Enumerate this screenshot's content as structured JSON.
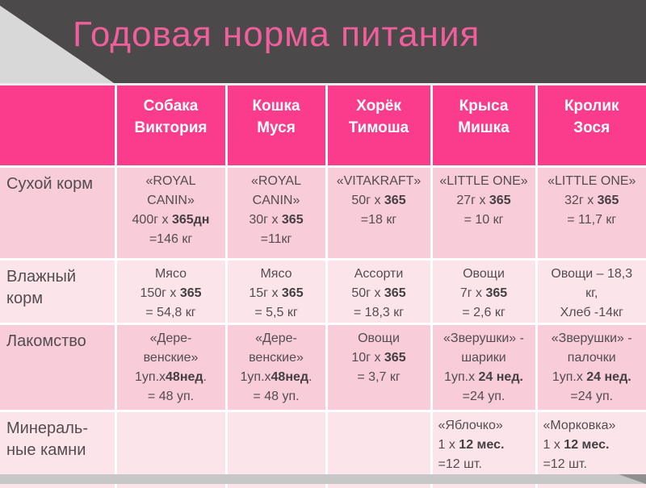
{
  "title": "Годовая норма питания",
  "colors": {
    "title_pink": "#ef5f9c",
    "header_bg": "#fb3c8c",
    "row_odd_bg": "#f8ccd8",
    "row_even_bg": "#fce5ea",
    "band_bg": "#4c494a",
    "corner_gray": "#d8d8d8",
    "bottom_strip": "#c7c7c7",
    "cell_text": "#524d51",
    "header_text": "#ffffff"
  },
  "table": {
    "header": [
      {
        "lines": []
      },
      {
        "lines": [
          "Собака",
          "Виктория"
        ]
      },
      {
        "lines": [
          "Кошка",
          "Муся"
        ]
      },
      {
        "lines": [
          "Хорёк",
          "Тимоша"
        ]
      },
      {
        "lines": [
          "Крыса",
          "Мишка"
        ]
      },
      {
        "lines": [
          "Кролик",
          "Зося"
        ]
      }
    ],
    "rows": [
      {
        "label": [
          "Сухой корм"
        ],
        "cells": [
          [
            [
              {
                "t": "«ROYAL"
              }
            ],
            [
              {
                "t": "CANIN»"
              }
            ],
            [
              {
                "t": "400г х "
              },
              {
                "t": "365дн",
                "b": true
              }
            ],
            [
              {
                "t": "=146 кг"
              }
            ]
          ],
          [
            [
              {
                "t": "«ROYAL"
              }
            ],
            [
              {
                "t": "CANIN»"
              }
            ],
            [
              {
                "t": "30г х "
              },
              {
                "t": "365",
                "b": true
              }
            ],
            [
              {
                "t": "=11кг"
              }
            ]
          ],
          [
            [
              {
                "t": "«VITAKRAFT»"
              }
            ],
            [
              {
                "t": "50г х "
              },
              {
                "t": "365",
                "b": true
              }
            ],
            [
              {
                "t": "=18 кг"
              }
            ]
          ],
          [
            [
              {
                "t": "«LITTLE ONE»"
              }
            ],
            [
              {
                "t": "27г х "
              },
              {
                "t": "365",
                "b": true
              }
            ],
            [
              {
                "t": "= 10 кг"
              }
            ]
          ],
          [
            [
              {
                "t": "«LITTLE ONE»"
              }
            ],
            [
              {
                "t": "32г х "
              },
              {
                "t": "365",
                "b": true
              }
            ],
            [
              {
                "t": "= 11,7 кг"
              }
            ]
          ]
        ]
      },
      {
        "label": [
          "Влажный",
          "корм"
        ],
        "cells": [
          [
            [
              {
                "t": "Мясо"
              }
            ],
            [
              {
                "t": "150г х "
              },
              {
                "t": "365",
                "b": true
              }
            ],
            [
              {
                "t": "= 54,8 кг"
              }
            ]
          ],
          [
            [
              {
                "t": "Мясо"
              }
            ],
            [
              {
                "t": "15г х "
              },
              {
                "t": "365",
                "b": true
              }
            ],
            [
              {
                "t": "= 5,5 кг"
              }
            ]
          ],
          [
            [
              {
                "t": "Ассорти"
              }
            ],
            [
              {
                "t": "50г х "
              },
              {
                "t": "365",
                "b": true
              }
            ],
            [
              {
                "t": "= 18,3 кг"
              }
            ]
          ],
          [
            [
              {
                "t": "Овощи"
              }
            ],
            [
              {
                "t": "7г х "
              },
              {
                "t": "365",
                "b": true
              }
            ],
            [
              {
                "t": "= 2,6 кг"
              }
            ]
          ],
          [
            [
              {
                "t": "Овощи – 18,3"
              }
            ],
            [
              {
                "t": "кг,"
              }
            ],
            [
              {
                "t": "Хлеб -14кг"
              }
            ]
          ]
        ]
      },
      {
        "label": [
          "Лакомство"
        ],
        "cells": [
          [
            [
              {
                "t": "«Дере-"
              }
            ],
            [
              {
                "t": "венские»"
              }
            ],
            [
              {
                "t": "1уп.х"
              },
              {
                "t": "48нед",
                "b": true
              },
              {
                "t": "."
              }
            ],
            [
              {
                "t": "= 48 уп."
              }
            ]
          ],
          [
            [
              {
                "t": "«Дере-"
              }
            ],
            [
              {
                "t": "венские»"
              }
            ],
            [
              {
                "t": "1уп.х"
              },
              {
                "t": "48нед",
                "b": true
              },
              {
                "t": "."
              }
            ],
            [
              {
                "t": "= 48 уп."
              }
            ]
          ],
          [
            [
              {
                "t": "Овощи"
              }
            ],
            [
              {
                "t": "10г х "
              },
              {
                "t": "365",
                "b": true
              }
            ],
            [
              {
                "t": "= 3,7 кг"
              }
            ]
          ],
          [
            [
              {
                "t": "«Зверушки» -"
              }
            ],
            [
              {
                "t": "шарики"
              }
            ],
            [
              {
                "t": "1уп.х "
              },
              {
                "t": "24 нед.",
                "b": true
              }
            ],
            [
              {
                "t": "=24 уп."
              }
            ]
          ],
          [
            [
              {
                "t": "«Зверушки» -"
              }
            ],
            [
              {
                "t": "палочки"
              }
            ],
            [
              {
                "t": "1уп.х "
              },
              {
                "t": "24 нед.",
                "b": true
              }
            ],
            [
              {
                "t": "=24 уп."
              }
            ]
          ]
        ]
      },
      {
        "label": [
          "Минераль-",
          "ные камни"
        ],
        "cells": [
          [],
          [],
          [],
          [
            [
              {
                "t": "«Яблочко»"
              }
            ],
            [
              {
                "t": "1 х "
              },
              {
                "t": "12 мес.",
                "b": true
              }
            ],
            [
              {
                "t": "=12 шт."
              }
            ]
          ],
          [
            [
              {
                "t": "«Морковка»"
              }
            ],
            [
              {
                "t": "1 х "
              },
              {
                "t": "12 мес.",
                "b": true
              }
            ],
            [
              {
                "t": "=12 шт."
              }
            ]
          ]
        ]
      }
    ]
  }
}
